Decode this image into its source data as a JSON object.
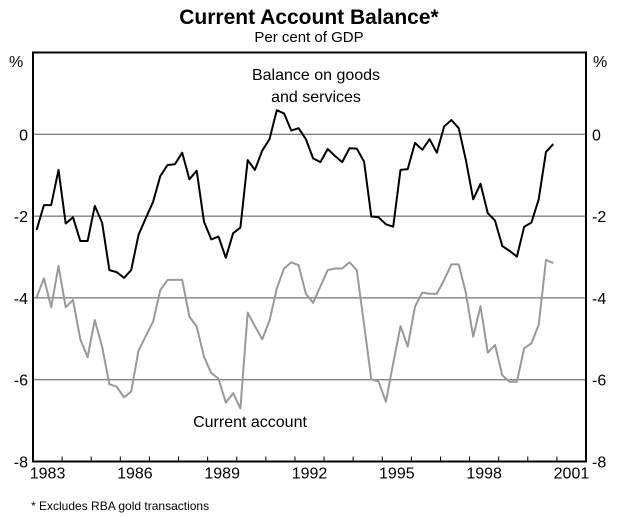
{
  "chart_data": {
    "type": "line",
    "title": "Current Account Balance*",
    "subtitle": "Per cent of GDP",
    "ylabel_left": "%",
    "ylabel_right": "%",
    "ylim": [
      -8,
      2
    ],
    "yticks": [
      0,
      -2,
      -4,
      -6,
      -8
    ],
    "ytick_labels": [
      "0",
      "-2",
      "-4",
      "-6",
      "-8"
    ],
    "xlim": [
      1983,
      2002
    ],
    "xtick_labels": [
      "1983",
      "1986",
      "1989",
      "1992",
      "1995",
      "1998",
      "2001"
    ],
    "gridlines": [
      0,
      -2,
      -4,
      -6
    ],
    "grid": true,
    "frequency": "quarterly",
    "start": "1983 Q1",
    "footnote": "* Excludes RBA gold transactions",
    "series": [
      {
        "name": "Balance on goods and services",
        "label_lines": [
          "Balance on goods",
          "and services"
        ],
        "color": "#000000",
        "values": [
          -2.34,
          -1.73,
          -1.73,
          -0.87,
          -2.18,
          -2.03,
          -2.61,
          -2.61,
          -1.75,
          -2.16,
          -3.32,
          -3.37,
          -3.51,
          -3.32,
          -2.46,
          -2.05,
          -1.65,
          -1.02,
          -0.75,
          -0.73,
          -0.45,
          -1.1,
          -0.89,
          -2.14,
          -2.57,
          -2.5,
          -3.02,
          -2.42,
          -2.28,
          -0.63,
          -0.87,
          -0.4,
          -0.12,
          0.59,
          0.51,
          0.09,
          0.15,
          -0.12,
          -0.59,
          -0.68,
          -0.36,
          -0.53,
          -0.68,
          -0.34,
          -0.35,
          -0.67,
          -2.01,
          -2.03,
          -2.2,
          -2.26,
          -0.87,
          -0.85,
          -0.21,
          -0.38,
          -0.12,
          -0.45,
          0.19,
          0.35,
          0.15,
          -0.63,
          -1.59,
          -1.21,
          -1.93,
          -2.11,
          -2.73,
          -2.85,
          -2.99,
          -2.26,
          -2.16,
          -1.59,
          -0.43,
          -0.24
        ]
      },
      {
        "name": "Current account",
        "label_lines": [
          "Current account"
        ],
        "color": "#999999",
        "values": [
          -3.99,
          -3.52,
          -4.23,
          -3.22,
          -4.23,
          -4.05,
          -5.01,
          -5.45,
          -4.54,
          -5.19,
          -6.11,
          -6.17,
          -6.43,
          -6.29,
          -5.29,
          -4.93,
          -4.58,
          -3.81,
          -3.56,
          -3.56,
          -3.56,
          -4.46,
          -4.7,
          -5.44,
          -5.84,
          -5.97,
          -6.56,
          -6.33,
          -6.7,
          -4.36,
          -4.69,
          -5.01,
          -4.56,
          -3.77,
          -3.28,
          -3.13,
          -3.2,
          -3.9,
          -4.12,
          -3.72,
          -3.32,
          -3.28,
          -3.28,
          -3.13,
          -3.32,
          -4.66,
          -5.99,
          -6.05,
          -6.54,
          -5.6,
          -4.69,
          -5.19,
          -4.21,
          -3.87,
          -3.9,
          -3.9,
          -3.56,
          -3.18,
          -3.18,
          -3.88,
          -4.95,
          -4.2,
          -5.34,
          -5.15,
          -5.89,
          -6.05,
          -6.05,
          -5.23,
          -5.11,
          -4.66,
          -3.07,
          -3.15
        ]
      }
    ]
  }
}
